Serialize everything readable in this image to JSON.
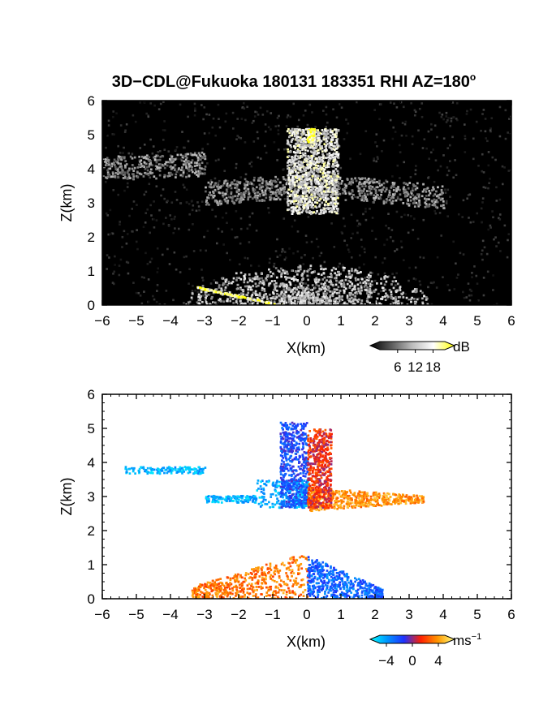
{
  "figure": {
    "title": "3D−CDL@Fukuoka 180131 183351 RHI AZ=180",
    "title_degree": "o"
  },
  "chart_data": [
    {
      "type": "heatmap",
      "quantity": "reflectivity",
      "xlabel": "X(km)",
      "ylabel": "Z(km)",
      "xlim": [
        -6,
        6
      ],
      "ylim": [
        0,
        6
      ],
      "xticks": [
        "−6",
        "−5",
        "−4",
        "−3",
        "−2",
        "−1",
        "0",
        "1",
        "2",
        "3",
        "4",
        "5",
        "6"
      ],
      "yticks": [
        "0",
        "1",
        "2",
        "3",
        "4",
        "5",
        "6"
      ],
      "background": "#000000",
      "colorbar": {
        "unit": "dB",
        "ticks": [
          "6",
          "12",
          "18"
        ],
        "range": [
          0,
          22
        ],
        "colors": [
          "#000000",
          "#5a5a5a",
          "#bdbdbd",
          "#ffffff",
          "#ffff00"
        ]
      },
      "features": [
        {
          "name": "upper cloud layer",
          "x": [
            -6,
            4
          ],
          "z": [
            2.6,
            4.3
          ],
          "level": 0.45
        },
        {
          "name": "bright column",
          "x": [
            -0.6,
            0.9
          ],
          "z": [
            2.7,
            5.2
          ],
          "level": 0.75
        },
        {
          "name": "low-level fan",
          "x": [
            -3.5,
            3.5
          ],
          "z": [
            0,
            1.2
          ],
          "level": 0.6
        },
        {
          "name": "strong echo near ground",
          "x": [
            -3.3,
            -0.7
          ],
          "z": [
            0,
            0.5
          ],
          "level": 1.0
        },
        {
          "name": "strong echo aloft",
          "x": [
            0,
            0.2
          ],
          "z": [
            4.8,
            5.2
          ],
          "level": 1.0
        }
      ]
    },
    {
      "type": "heatmap",
      "quantity": "radial velocity",
      "xlabel": "X(km)",
      "ylabel": "Z(km)",
      "xlim": [
        -6,
        6
      ],
      "ylim": [
        0,
        6
      ],
      "xticks": [
        "−6",
        "−5",
        "−4",
        "−3",
        "−2",
        "−1",
        "0",
        "1",
        "2",
        "3",
        "4",
        "5",
        "6"
      ],
      "yticks": [
        "0",
        "1",
        "2",
        "3",
        "4",
        "5",
        "6"
      ],
      "background": "#ffffff",
      "colorbar": {
        "unit": "ms",
        "unit_exponent": "−1",
        "ticks": [
          "−4",
          "0",
          "4"
        ],
        "range": [
          -5,
          5
        ],
        "colors": [
          "#00ffff",
          "#0096ff",
          "#1e32ff",
          "#ff2000",
          "#ff9600",
          "#ffff80"
        ]
      },
      "features": [
        {
          "name": "upper layer outbound",
          "x": [
            -5.4,
            0
          ],
          "z": [
            2.7,
            4.0
          ],
          "velocity": -3.5
        },
        {
          "name": "upper layer inbound",
          "x": [
            0,
            3.4
          ],
          "z": [
            2.6,
            3.4
          ],
          "velocity": 3.0
        },
        {
          "name": "column outbound",
          "x": [
            -0.8,
            0
          ],
          "z": [
            2.7,
            5.2
          ],
          "velocity": -1.5
        },
        {
          "name": "column inbound",
          "x": [
            0,
            0.7
          ],
          "z": [
            2.7,
            5.0
          ],
          "velocity": 1.0
        },
        {
          "name": "low layer inbound",
          "x": [
            -3.4,
            0
          ],
          "z": [
            0,
            1.6
          ],
          "velocity": 2.5
        },
        {
          "name": "low layer outbound",
          "x": [
            0,
            2.2
          ],
          "z": [
            0,
            1.4
          ],
          "velocity": -2.0
        }
      ]
    }
  ]
}
